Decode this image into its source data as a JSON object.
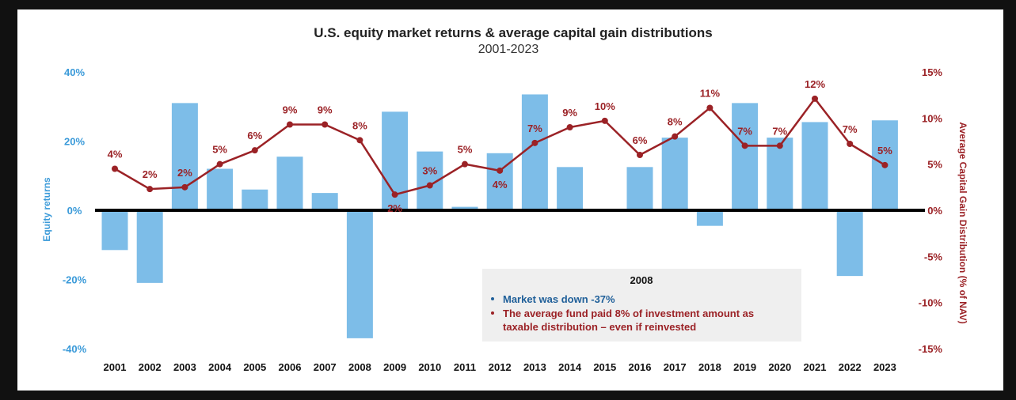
{
  "chart_data": {
    "type": "bar",
    "title": "U.S. equity market returns & average capital gain distributions",
    "subtitle": "2001-2023",
    "categories": [
      "2001",
      "2002",
      "2003",
      "2004",
      "2005",
      "2006",
      "2007",
      "2008",
      "2009",
      "2010",
      "2011",
      "2012",
      "2013",
      "2014",
      "2015",
      "2016",
      "2017",
      "2018",
      "2019",
      "2020",
      "2021",
      "2022",
      "2023"
    ],
    "series": [
      {
        "name": "Equity returns",
        "kind": "bar",
        "axis": "left",
        "color": "#7dbde8",
        "values": [
          -11.5,
          -21,
          31,
          12,
          6,
          15.5,
          5,
          -37,
          28.5,
          17,
          1,
          16.5,
          33.5,
          12.5,
          0,
          12.5,
          21,
          -4.5,
          31,
          21,
          25.5,
          -19,
          26
        ]
      },
      {
        "name": "Average Capital Gain Distribution (% of NAV)",
        "kind": "line",
        "axis": "right",
        "color": "#9b2226",
        "values": [
          4.5,
          2.3,
          2.5,
          5,
          6.5,
          9.3,
          9.3,
          7.6,
          1.7,
          2.7,
          5,
          4.3,
          7.3,
          9,
          9.7,
          6,
          8,
          11.1,
          7,
          7,
          12.1,
          7.2,
          4.9
        ],
        "labels": [
          "4%",
          "2%",
          "2%",
          "5%",
          "6%",
          "9%",
          "9%",
          "8%",
          "2%",
          "3%",
          "5%",
          "4%",
          "7%",
          "9%",
          "10%",
          "6%",
          "8%",
          "11%",
          "7%",
          "7%",
          "12%",
          "7%",
          "5%"
        ]
      }
    ],
    "ylabel_left": "Equity returns",
    "ylabel_right": "Average Capital Gain Distribution (% of NAV)",
    "ylim_left": [
      -40,
      40
    ],
    "ylim_right": [
      -15,
      15
    ],
    "yticks_left": [
      "40%",
      "20%",
      "0%",
      "-20%",
      "-40%"
    ],
    "yticks_right": [
      "15%",
      "10%",
      "5%",
      "0%",
      "-5%",
      "-10%",
      "-15%"
    ],
    "grid": false,
    "legend": "none",
    "callout": {
      "title": "2008",
      "lines": [
        {
          "text": "Market was down -37%",
          "color": "blue"
        },
        {
          "text": "The average fund paid 8% of investment amount as",
          "color": "red"
        },
        {
          "text": "taxable distribution – even if reinvested",
          "color": "red"
        }
      ]
    }
  }
}
